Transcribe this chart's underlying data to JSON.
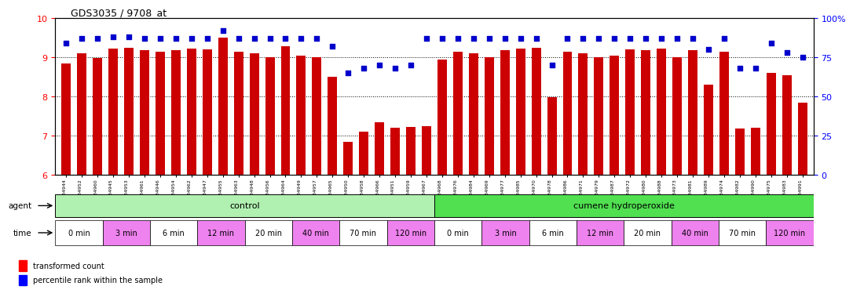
{
  "title": "GDS3035 / 9708_at",
  "sample_ids": [
    "GSM184944",
    "GSM184952",
    "GSM184960",
    "GSM184945",
    "GSM184953",
    "GSM184961",
    "GSM184946",
    "GSM184954",
    "GSM184962",
    "GSM184947",
    "GSM184955",
    "GSM184963",
    "GSM184948",
    "GSM184956",
    "GSM184964",
    "GSM184949",
    "GSM184957",
    "GSM184965",
    "GSM184950",
    "GSM184958",
    "GSM184966",
    "GSM184951",
    "GSM184959",
    "GSM184967",
    "GSM184968",
    "GSM184976",
    "GSM184984",
    "GSM184969",
    "GSM184977",
    "GSM184985",
    "GSM184970",
    "GSM184978",
    "GSM184986",
    "GSM184971",
    "GSM184979",
    "GSM184987",
    "GSM184972",
    "GSM184980",
    "GSM184988",
    "GSM184973",
    "GSM184981",
    "GSM184989",
    "GSM184974",
    "GSM184982",
    "GSM184990",
    "GSM184975",
    "GSM184983",
    "GSM184991"
  ],
  "bar_values": [
    8.85,
    9.1,
    8.98,
    9.22,
    9.25,
    9.18,
    9.15,
    9.18,
    9.22,
    9.2,
    9.5,
    9.15,
    9.1,
    9.0,
    9.28,
    9.05,
    9.0,
    8.5,
    6.85,
    7.1,
    7.35,
    7.2,
    7.22,
    7.25,
    8.95,
    9.15,
    9.1,
    9.0,
    9.18,
    9.22,
    9.25,
    7.98,
    9.15,
    9.1,
    9.0,
    9.05,
    9.2,
    9.18,
    9.22,
    9.0,
    9.18,
    8.3,
    9.15,
    7.18,
    7.2,
    8.6,
    8.55,
    7.85
  ],
  "percentile_values": [
    84,
    87,
    87,
    88,
    88,
    87,
    87,
    87,
    87,
    87,
    92,
    87,
    87,
    87,
    87,
    87,
    87,
    82,
    65,
    68,
    70,
    68,
    70,
    87,
    87,
    87,
    87,
    87,
    87,
    87,
    87,
    70,
    87,
    87,
    87,
    87,
    87,
    87,
    87,
    87,
    87,
    80,
    87,
    68,
    68,
    84,
    78,
    75
  ],
  "ylim_left": [
    6,
    10
  ],
  "ylim_right": [
    0,
    100
  ],
  "yticks_left": [
    6,
    7,
    8,
    9,
    10
  ],
  "yticks_right": [
    0,
    25,
    50,
    75,
    100
  ],
  "bar_color": "#cc0000",
  "dot_color": "#0000cc",
  "grid_color": "#000000",
  "bg_color": "#ffffff",
  "agent_labels": [
    "control",
    "cumene hydroperoxide"
  ],
  "agent_colors": [
    "#90ee90",
    "#90ee90"
  ],
  "agent_split": 24,
  "time_labels_control": [
    "0 min",
    "3 min",
    "6 min",
    "12 min",
    "20 min",
    "40 min",
    "70 min",
    "120 min"
  ],
  "time_labels_treatment": [
    "0 min",
    "3 min",
    "6 min",
    "12 min",
    "20 min",
    "40 min",
    "70 min",
    "120 min"
  ],
  "time_colors": [
    "#ffffff",
    "#ee82ee",
    "#ffffff",
    "#ee82ee",
    "#ffffff",
    "#ee82ee",
    "#ffffff",
    "#ee82ee"
  ],
  "time_counts_control": [
    3,
    3,
    3,
    3,
    3,
    3,
    3,
    3
  ],
  "time_counts_treatment": [
    3,
    3,
    3,
    3,
    3,
    3,
    3,
    3
  ],
  "legend_items": [
    "transformed count",
    "percentile rank within the sample"
  ]
}
